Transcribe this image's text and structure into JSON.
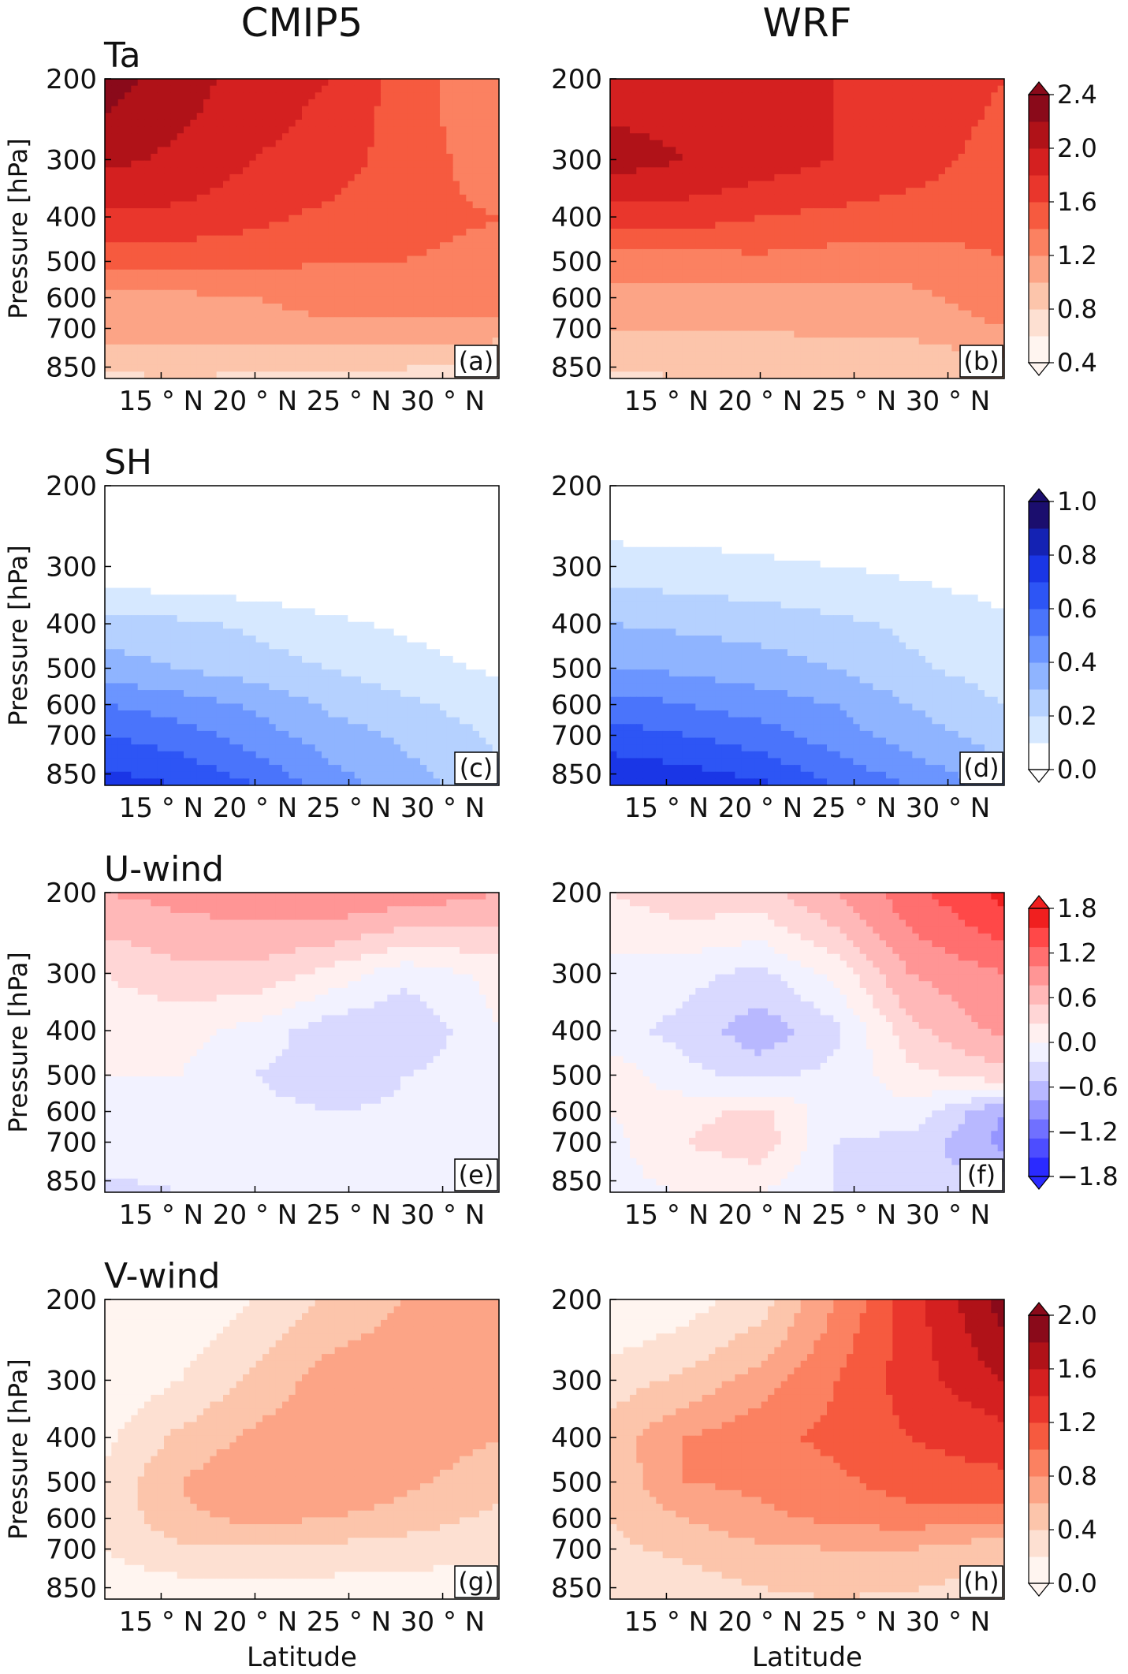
{
  "figure": {
    "column_titles": [
      "CMIP5",
      "WRF"
    ],
    "row_titles": [
      "Ta",
      "SH",
      "U-wind",
      "V-wind"
    ],
    "xlabel": "Latitude",
    "ylabel": "Pressure [hPa]"
  },
  "chart_data": [
    {
      "type": "heatmap",
      "panel": "(a)",
      "model": "CMIP5",
      "variable": "Ta",
      "xlabel": "",
      "ylabel": "Pressure [hPa]",
      "x_ticks": [
        "15 ° N",
        "20 ° N",
        "25 ° N",
        "30 ° N"
      ],
      "x_tick_values": [
        15,
        20,
        25,
        30
      ],
      "y_ticks": [
        "200",
        "300",
        "400",
        "500",
        "600",
        "700",
        "850"
      ],
      "y_tick_values": [
        200,
        300,
        400,
        500,
        600,
        700,
        850
      ],
      "xlim": [
        12,
        33
      ],
      "ylim": [
        900,
        200
      ],
      "y_scale": "log",
      "x": [
        12,
        16,
        20,
        24,
        28,
        33
      ],
      "y": [
        200,
        300,
        400,
        500,
        600,
        700,
        900
      ],
      "z": [
        [
          2.3,
          2.1,
          1.9,
          1.8,
          1.5,
          1.2
        ],
        [
          2.05,
          1.95,
          1.8,
          1.7,
          1.5,
          1.3
        ],
        [
          1.75,
          1.75,
          1.65,
          1.55,
          1.45,
          1.4
        ],
        [
          1.45,
          1.45,
          1.45,
          1.4,
          1.4,
          1.35
        ],
        [
          1.15,
          1.15,
          1.2,
          1.3,
          1.3,
          1.3
        ],
        [
          1.1,
          1.1,
          1.1,
          1.15,
          1.15,
          1.1
        ],
        [
          0.75,
          0.8,
          0.75,
          0.7,
          0.7,
          0.65
        ]
      ],
      "colorscale": "reds"
    },
    {
      "type": "heatmap",
      "panel": "(b)",
      "model": "WRF",
      "variable": "Ta",
      "xlabel": "",
      "ylabel": "",
      "x_ticks": [
        "15 ° N",
        "20 ° N",
        "25 ° N",
        "30 ° N"
      ],
      "x_tick_values": [
        15,
        20,
        25,
        30
      ],
      "y_ticks": [
        "200",
        "300",
        "400",
        "500",
        "600",
        "700",
        "850"
      ],
      "y_tick_values": [
        200,
        300,
        400,
        500,
        600,
        700,
        850
      ],
      "xlim": [
        12,
        33
      ],
      "ylim": [
        900,
        200
      ],
      "y_scale": "log",
      "x": [
        12,
        16,
        20,
        24,
        28,
        33
      ],
      "y": [
        200,
        300,
        400,
        500,
        600,
        700,
        900
      ],
      "z": [
        [
          1.9,
          1.9,
          1.85,
          1.8,
          1.75,
          1.6
        ],
        [
          2.1,
          2.0,
          1.9,
          1.8,
          1.7,
          1.5
        ],
        [
          1.7,
          1.7,
          1.6,
          1.55,
          1.5,
          1.45
        ],
        [
          1.3,
          1.3,
          1.35,
          1.3,
          1.3,
          1.4
        ],
        [
          1.1,
          1.1,
          1.1,
          1.15,
          1.15,
          1.3
        ],
        [
          1.0,
          1.0,
          1.0,
          1.05,
          1.05,
          1.2
        ],
        [
          0.75,
          0.8,
          0.8,
          0.8,
          0.8,
          0.8
        ]
      ],
      "colorscale": "reds"
    },
    {
      "type": "heatmap",
      "panel": "(c)",
      "model": "CMIP5",
      "variable": "SH",
      "xlabel": "",
      "ylabel": "Pressure [hPa]",
      "x_ticks": [
        "15 ° N",
        "20 ° N",
        "25 ° N",
        "30 ° N"
      ],
      "x_tick_values": [
        15,
        20,
        25,
        30
      ],
      "y_ticks": [
        "200",
        "300",
        "400",
        "500",
        "600",
        "700",
        "850"
      ],
      "y_tick_values": [
        200,
        300,
        400,
        500,
        600,
        700,
        850
      ],
      "xlim": [
        12,
        33
      ],
      "ylim": [
        900,
        200
      ],
      "y_scale": "log",
      "x": [
        12,
        16,
        20,
        24,
        28,
        33
      ],
      "y": [
        200,
        300,
        400,
        500,
        600,
        700,
        900
      ],
      "z": [
        [
          0.0,
          0.0,
          0.0,
          0.0,
          0.0,
          0.0
        ],
        [
          0.02,
          0.01,
          0.0,
          0.0,
          0.0,
          0.0
        ],
        [
          0.25,
          0.22,
          0.18,
          0.12,
          0.08,
          0.02
        ],
        [
          0.35,
          0.3,
          0.25,
          0.2,
          0.15,
          0.08
        ],
        [
          0.5,
          0.45,
          0.38,
          0.28,
          0.22,
          0.15
        ],
        [
          0.6,
          0.55,
          0.45,
          0.35,
          0.28,
          0.18
        ],
        [
          0.75,
          0.7,
          0.6,
          0.45,
          0.35,
          0.22
        ]
      ],
      "colorscale": "blues"
    },
    {
      "type": "heatmap",
      "panel": "(d)",
      "model": "WRF",
      "variable": "SH",
      "xlabel": "",
      "ylabel": "",
      "x_ticks": [
        "15 ° N",
        "20 ° N",
        "25 ° N",
        "30 ° N"
      ],
      "x_tick_values": [
        15,
        20,
        25,
        30
      ],
      "y_ticks": [
        "200",
        "300",
        "400",
        "500",
        "600",
        "700",
        "850"
      ],
      "y_tick_values": [
        200,
        300,
        400,
        500,
        600,
        700,
        850
      ],
      "xlim": [
        12,
        33
      ],
      "ylim": [
        900,
        200
      ],
      "y_scale": "log",
      "x": [
        12,
        16,
        20,
        24,
        28,
        33
      ],
      "y": [
        200,
        300,
        400,
        500,
        600,
        700,
        900
      ],
      "z": [
        [
          0.0,
          0.0,
          0.0,
          0.0,
          0.0,
          0.0
        ],
        [
          0.15,
          0.14,
          0.12,
          0.1,
          0.08,
          0.05
        ],
        [
          0.3,
          0.28,
          0.26,
          0.22,
          0.18,
          0.12
        ],
        [
          0.4,
          0.38,
          0.35,
          0.3,
          0.22,
          0.15
        ],
        [
          0.55,
          0.5,
          0.45,
          0.4,
          0.3,
          0.2
        ],
        [
          0.65,
          0.6,
          0.55,
          0.45,
          0.35,
          0.25
        ],
        [
          0.8,
          0.78,
          0.72,
          0.6,
          0.5,
          0.35
        ]
      ],
      "colorscale": "blues"
    },
    {
      "type": "heatmap",
      "panel": "(e)",
      "model": "CMIP5",
      "variable": "U-wind",
      "xlabel": "",
      "ylabel": "Pressure [hPa]",
      "x_ticks": [
        "15 ° N",
        "20 ° N",
        "25 ° N",
        "30 ° N"
      ],
      "x_tick_values": [
        15,
        20,
        25,
        30
      ],
      "y_ticks": [
        "200",
        "300",
        "400",
        "500",
        "600",
        "700",
        "850"
      ],
      "y_tick_values": [
        200,
        300,
        400,
        500,
        600,
        700,
        850
      ],
      "xlim": [
        12,
        33
      ],
      "ylim": [
        900,
        200
      ],
      "y_scale": "log",
      "x": [
        12,
        16,
        20,
        24,
        28,
        33
      ],
      "y": [
        200,
        300,
        400,
        500,
        600,
        700,
        900
      ],
      "z": [
        [
          0.9,
          1.0,
          1.1,
          1.2,
          1.1,
          0.9
        ],
        [
          0.3,
          0.5,
          0.5,
          0.2,
          -0.2,
          0.1
        ],
        [
          0.1,
          0.1,
          -0.1,
          -0.5,
          -0.6,
          0.0
        ],
        [
          0.0,
          0.0,
          -0.3,
          -0.5,
          -0.3,
          -0.1
        ],
        [
          -0.1,
          -0.1,
          -0.2,
          -0.3,
          -0.25,
          -0.15
        ],
        [
          -0.2,
          -0.2,
          -0.2,
          -0.2,
          -0.2,
          -0.2
        ],
        [
          -0.35,
          -0.3,
          -0.25,
          -0.25,
          -0.2,
          -0.2
        ]
      ],
      "colorscale": "diverging"
    },
    {
      "type": "heatmap",
      "panel": "(f)",
      "model": "WRF",
      "variable": "U-wind",
      "xlabel": "",
      "ylabel": "",
      "x_ticks": [
        "15 ° N",
        "20 ° N",
        "25 ° N",
        "30 ° N"
      ],
      "x_tick_values": [
        15,
        20,
        25,
        30
      ],
      "y_ticks": [
        "200",
        "300",
        "400",
        "500",
        "600",
        "700",
        "850"
      ],
      "y_tick_values": [
        200,
        300,
        400,
        500,
        600,
        700,
        850
      ],
      "xlim": [
        12,
        33
      ],
      "ylim": [
        900,
        200
      ],
      "y_scale": "log",
      "x": [
        12,
        16,
        20,
        24,
        28,
        33
      ],
      "y": [
        200,
        300,
        400,
        500,
        600,
        700,
        900
      ],
      "z": [
        [
          0.3,
          0.5,
          0.5,
          0.9,
          1.4,
          1.9
        ],
        [
          -0.1,
          -0.2,
          -0.4,
          0.1,
          0.9,
          1.2
        ],
        [
          -0.2,
          -0.4,
          -0.8,
          -0.4,
          0.5,
          1.0
        ],
        [
          0.2,
          -0.2,
          -0.4,
          -0.2,
          0.2,
          0.5
        ],
        [
          0.0,
          0.2,
          0.4,
          -0.2,
          -0.1,
          -0.9
        ],
        [
          -0.1,
          0.3,
          0.5,
          -0.3,
          -0.4,
          -1.0
        ],
        [
          -0.1,
          0.0,
          0.0,
          -0.3,
          -0.6,
          -0.3
        ]
      ],
      "colorscale": "diverging"
    },
    {
      "type": "heatmap",
      "panel": "(g)",
      "model": "CMIP5",
      "variable": "V-wind",
      "xlabel": "Latitude",
      "ylabel": "Pressure [hPa]",
      "x_ticks": [
        "15 ° N",
        "20 ° N",
        "25 ° N",
        "30 ° N"
      ],
      "x_tick_values": [
        15,
        20,
        25,
        30
      ],
      "y_ticks": [
        "200",
        "300",
        "400",
        "500",
        "600",
        "700",
        "850"
      ],
      "y_tick_values": [
        200,
        300,
        400,
        500,
        600,
        700,
        850
      ],
      "xlim": [
        12,
        33
      ],
      "ylim": [
        900,
        200
      ],
      "y_scale": "log",
      "x": [
        12,
        16,
        20,
        24,
        28,
        33
      ],
      "y": [
        200,
        300,
        400,
        500,
        600,
        700,
        900
      ],
      "z": [
        [
          0.0,
          0.05,
          0.2,
          0.45,
          0.6,
          0.75
        ],
        [
          0.05,
          0.2,
          0.45,
          0.7,
          0.75,
          0.75
        ],
        [
          0.15,
          0.45,
          0.65,
          0.8,
          0.75,
          0.6
        ],
        [
          0.25,
          0.6,
          0.8,
          0.8,
          0.65,
          0.45
        ],
        [
          0.25,
          0.55,
          0.65,
          0.6,
          0.5,
          0.35
        ],
        [
          0.2,
          0.35,
          0.35,
          0.35,
          0.3,
          0.25
        ],
        [
          0.05,
          0.05,
          0.05,
          0.05,
          0.05,
          0.05
        ]
      ],
      "colorscale": "reds"
    },
    {
      "type": "heatmap",
      "panel": "(h)",
      "model": "WRF",
      "variable": "V-wind",
      "xlabel": "Latitude",
      "ylabel": "",
      "x_ticks": [
        "15 ° N",
        "20 ° N",
        "25 ° N",
        "30 ° N"
      ],
      "x_tick_values": [
        15,
        20,
        25,
        30
      ],
      "y_ticks": [
        "200",
        "300",
        "400",
        "500",
        "600",
        "700",
        "850"
      ],
      "y_tick_values": [
        200,
        300,
        400,
        500,
        600,
        700,
        850
      ],
      "xlim": [
        12,
        33
      ],
      "ylim": [
        900,
        200
      ],
      "y_scale": "log",
      "x": [
        12,
        16,
        20,
        24,
        28,
        33
      ],
      "y": [
        200,
        300,
        400,
        500,
        600,
        700,
        900
      ],
      "z": [
        [
          0.0,
          0.1,
          0.3,
          0.8,
          1.3,
          1.9
        ],
        [
          0.3,
          0.45,
          0.7,
          1.0,
          1.3,
          1.6
        ],
        [
          0.5,
          0.8,
          0.95,
          1.05,
          1.2,
          1.3
        ],
        [
          0.45,
          0.8,
          0.85,
          0.95,
          1.1,
          1.15
        ],
        [
          0.4,
          0.6,
          0.75,
          0.85,
          0.9,
          0.85
        ],
        [
          0.35,
          0.45,
          0.55,
          0.6,
          0.6,
          0.45
        ],
        [
          0.2,
          0.25,
          0.35,
          0.4,
          0.35,
          0.25
        ]
      ],
      "colorscale": "reds"
    }
  ],
  "colorbars": [
    {
      "name": "ta",
      "scale": "reds",
      "ticks": [
        "2.4",
        "2.0",
        "1.6",
        "1.2",
        "0.8",
        "0.4"
      ],
      "levels": [
        0.4,
        0.6,
        0.8,
        1.0,
        1.2,
        1.4,
        1.6,
        1.8,
        2.0,
        2.2,
        2.4
      ]
    },
    {
      "name": "sh",
      "scale": "blues",
      "ticks": [
        "1.0",
        "0.8",
        "0.6",
        "0.4",
        "0.2",
        "0.0"
      ],
      "levels": [
        0.0,
        0.1,
        0.2,
        0.3,
        0.4,
        0.5,
        0.6,
        0.7,
        0.8,
        0.9,
        1.0
      ]
    },
    {
      "name": "uwind",
      "scale": "diverging",
      "ticks": [
        "1.8",
        "1.2",
        "0.6",
        "0.0",
        "−0.6",
        "−1.2",
        "−1.8"
      ],
      "levels": [
        -2.1,
        -1.8,
        -1.5,
        -1.2,
        -0.9,
        -0.6,
        -0.3,
        0.0,
        0.3,
        0.6,
        0.9,
        1.2,
        1.5,
        1.8,
        2.1
      ]
    },
    {
      "name": "vwind",
      "scale": "reds",
      "ticks": [
        "2.0",
        "1.6",
        "1.2",
        "0.8",
        "0.4",
        "0.0"
      ],
      "levels": [
        0.0,
        0.2,
        0.4,
        0.6,
        0.8,
        1.0,
        1.2,
        1.4,
        1.6,
        1.8,
        2.0
      ]
    }
  ],
  "colors": {
    "reds": [
      "#fff5f0",
      "#fde0d2",
      "#fcc5ab",
      "#fca486",
      "#fb8161",
      "#f65a3f",
      "#e9362c",
      "#d42020",
      "#b01218",
      "#8a0a1a"
    ],
    "blues": [
      "#ffffff",
      "#d6e8ff",
      "#b5d1ff",
      "#8fb4ff",
      "#6b95ff",
      "#4a74fb",
      "#2d55f5",
      "#1a36e6",
      "#1422b3",
      "#1b0e6e"
    ],
    "diverging": [
      "#2a2aff",
      "#4d4dff",
      "#7070ff",
      "#9595ff",
      "#b8b8ff",
      "#d9d9ff",
      "#f2f2ff",
      "#fff0f0",
      "#ffd6d6",
      "#ffb8b8",
      "#ff9595",
      "#ff6f6f",
      "#ff4848",
      "#f01f1f"
    ],
    "tripod_low": "#ffffff"
  }
}
